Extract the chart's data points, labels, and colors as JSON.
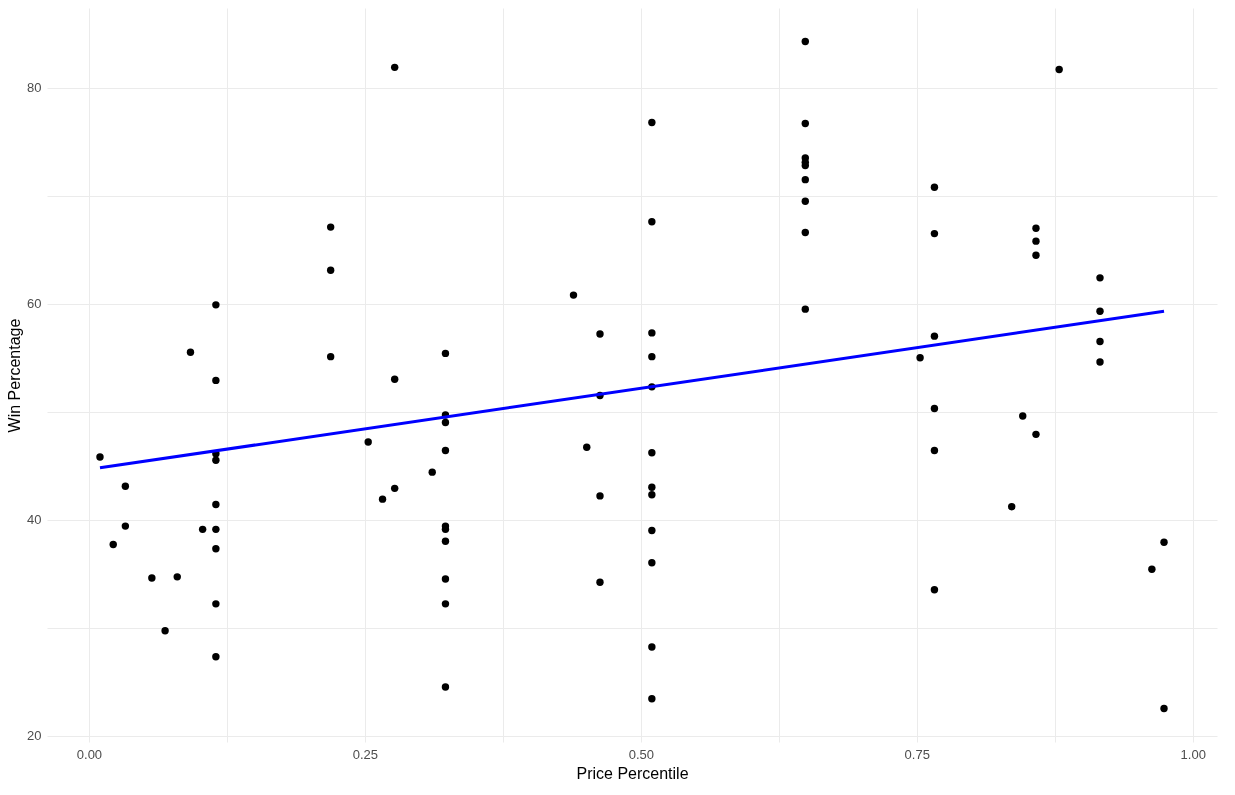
{
  "chart_data": {
    "type": "scatter",
    "xlabel": "Price Percentile",
    "ylabel": "Win Percentage",
    "xlim": [
      -0.038,
      1.022
    ],
    "ylim": [
      19.4,
      87.4
    ],
    "xticks": [
      {
        "value": 0,
        "label": "0.00"
      },
      {
        "value": 0.125,
        "label": null
      },
      {
        "value": 0.25,
        "label": "0.25"
      },
      {
        "value": 0.375,
        "label": null
      },
      {
        "value": 0.5,
        "label": "0.50"
      },
      {
        "value": 0.625,
        "label": null
      },
      {
        "value": 0.75,
        "label": "0.75"
      },
      {
        "value": 0.875,
        "label": null
      },
      {
        "value": 1,
        "label": "1.00"
      }
    ],
    "yticks": [
      20,
      {
        "value": 30,
        "label": null
      },
      40,
      {
        "value": 50,
        "label": null
      },
      60,
      {
        "value": 70,
        "label": null
      },
      80
    ],
    "grid": true,
    "series": [
      {
        "marker": "circle",
        "color": "#000000",
        "x": [
          0.01,
          0.022,
          0.033,
          0.033,
          0.057,
          0.069,
          0.08,
          0.092,
          0.103,
          0.115,
          0.115,
          0.115,
          0.115,
          0.115,
          0.115,
          0.115,
          0.115,
          0.115,
          0.219,
          0.219,
          0.219,
          0.253,
          0.266,
          0.277,
          0.277,
          0.277,
          0.311,
          0.323,
          0.323,
          0.323,
          0.323,
          0.323,
          0.323,
          0.323,
          0.323,
          0.323,
          0.323,
          0.439,
          0.451,
          0.463,
          0.463,
          0.463,
          0.463,
          0.51,
          0.51,
          0.51,
          0.51,
          0.51,
          0.51,
          0.51,
          0.51,
          0.51,
          0.51,
          0.51,
          0.51,
          0.649,
          0.649,
          0.649,
          0.649,
          0.649,
          0.649,
          0.649,
          0.649,
          0.649,
          0.753,
          0.766,
          0.766,
          0.766,
          0.766,
          0.766,
          0.766,
          0.836,
          0.846,
          0.858,
          0.858,
          0.858,
          0.858,
          0.879,
          0.916,
          0.916,
          0.916,
          0.916,
          0.963,
          0.974,
          0.974
        ],
        "values": [
          45.8,
          37.7,
          43.1,
          39.4,
          34.6,
          29.7,
          34.7,
          55.5,
          39.1,
          59.9,
          52.9,
          46.1,
          45.5,
          41.4,
          39.1,
          37.3,
          32.2,
          27.3,
          67.1,
          63.1,
          55.1,
          47.2,
          41.9,
          81.9,
          53.0,
          42.9,
          44.4,
          55.4,
          49.7,
          49.0,
          46.4,
          39.4,
          39.1,
          38.0,
          34.5,
          32.2,
          24.5,
          60.8,
          46.7,
          57.2,
          51.5,
          42.2,
          34.2,
          76.8,
          67.6,
          57.3,
          55.1,
          52.3,
          46.2,
          43.0,
          42.3,
          39.0,
          36.0,
          28.2,
          23.4,
          84.3,
          76.7,
          73.5,
          73.1,
          72.8,
          71.5,
          69.5,
          66.6,
          59.5,
          55.0,
          70.8,
          66.5,
          57.0,
          50.3,
          46.4,
          33.5,
          41.2,
          49.6,
          67.0,
          65.8,
          64.5,
          47.9,
          81.7,
          62.4,
          59.3,
          56.5,
          54.6,
          35.4,
          37.9,
          22.5
        ]
      },
      {
        "type": "line",
        "color": "#0000ff",
        "x": [
          0.01,
          0.974
        ],
        "values": [
          44.8,
          59.3
        ]
      }
    ]
  }
}
